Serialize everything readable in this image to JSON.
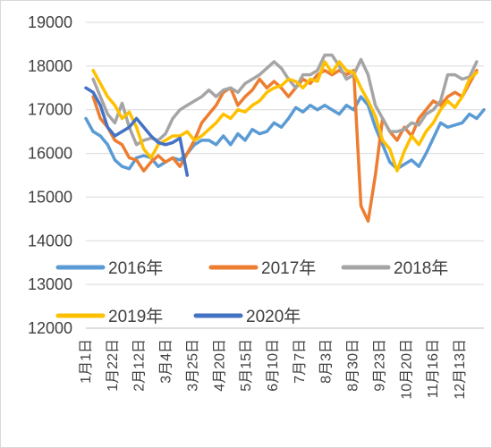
{
  "chart_data": {
    "type": "line",
    "title": "",
    "xlabel": "",
    "ylabel": "",
    "ylim": [
      12000,
      19000
    ],
    "y_ticks": [
      "12000",
      "13000",
      "14000",
      "15000",
      "16000",
      "17000",
      "18000",
      "19000"
    ],
    "x_tick_labels": [
      "1月1日",
      "1月22日",
      "2月12日",
      "3月4日",
      "3月25日",
      "4月20日",
      "5月15日",
      "6月10日",
      "7月7日",
      "8月3日",
      "8月30日",
      "9月23日",
      "10月20日",
      "11月16日",
      "12月13日"
    ],
    "grid": "horizontal",
    "legend": "bottom",
    "series": [
      {
        "name": "2016年",
        "color": "#5b9bd5",
        "values": [
          16800,
          16500,
          16400,
          16200,
          15850,
          15700,
          15650,
          15900,
          15950,
          15900,
          15700,
          15800,
          15900,
          15850,
          16000,
          16200,
          16300,
          16300,
          16200,
          16400,
          16200,
          16450,
          16300,
          16550,
          16450,
          16500,
          16700,
          16600,
          16800,
          17050,
          16950,
          17100,
          17000,
          17100,
          17000,
          16900,
          17100,
          17000,
          17300,
          17100,
          16600,
          16200,
          15800,
          15650,
          15750,
          15850,
          15700,
          16000,
          16350,
          16700,
          16600,
          16650,
          16700,
          16900,
          16800,
          17000
        ]
      },
      {
        "name": "2017年",
        "color": "#ed7d31",
        "values": [
          null,
          17300,
          16800,
          16600,
          16300,
          16200,
          15900,
          15850,
          15600,
          15800,
          15950,
          15800,
          15900,
          15700,
          16000,
          16300,
          16700,
          16900,
          17100,
          17400,
          17500,
          17100,
          17300,
          17450,
          17700,
          17500,
          17650,
          17500,
          17300,
          17500,
          17700,
          17600,
          17800,
          17900,
          17800,
          17900,
          17800,
          17900,
          14800,
          14450,
          15500,
          16800,
          16500,
          16300,
          16600,
          16400,
          16800,
          17000,
          17200,
          17100,
          17300,
          17400,
          17300,
          17600,
          17900
        ]
      },
      {
        "name": "2018年",
        "color": "#a5a5a5",
        "values": [
          null,
          17700,
          17300,
          16900,
          16700,
          17150,
          16600,
          16200,
          16300,
          16350,
          16300,
          16450,
          16800,
          17000,
          17100,
          17200,
          17300,
          17450,
          17300,
          17450,
          17500,
          17400,
          17600,
          17700,
          17800,
          17950,
          18100,
          17950,
          17700,
          17500,
          17800,
          17800,
          17900,
          18250,
          18250,
          18000,
          17700,
          17800,
          18150,
          17800,
          17100,
          16800,
          16500,
          16500,
          16550,
          16700,
          16650,
          16900,
          17000,
          17200,
          17800,
          17800,
          17700,
          17750,
          18100
        ]
      },
      {
        "name": "2019年",
        "color": "#ffc000",
        "values": [
          null,
          17900,
          17600,
          17300,
          17100,
          16800,
          16950,
          16600,
          16100,
          15900,
          16200,
          16300,
          16400,
          16400,
          16500,
          16300,
          16400,
          16550,
          16700,
          16900,
          16800,
          17000,
          16950,
          17100,
          17200,
          17400,
          17500,
          17550,
          17700,
          17650,
          17500,
          17700,
          17650,
          18100,
          17850,
          18100,
          17900,
          17850,
          17500,
          17200,
          16850,
          16300,
          16100,
          15600,
          16050,
          16400,
          16200,
          16500,
          16700,
          17000,
          17200,
          17050,
          17300,
          17700,
          17850
        ]
      },
      {
        "name": "2020年",
        "color": "#4472c4",
        "values": [
          17500,
          17400,
          17100,
          16600,
          16400,
          16500,
          16600,
          16800,
          16600,
          16400,
          16250,
          16200,
          16250,
          16350,
          15500
        ]
      }
    ]
  }
}
